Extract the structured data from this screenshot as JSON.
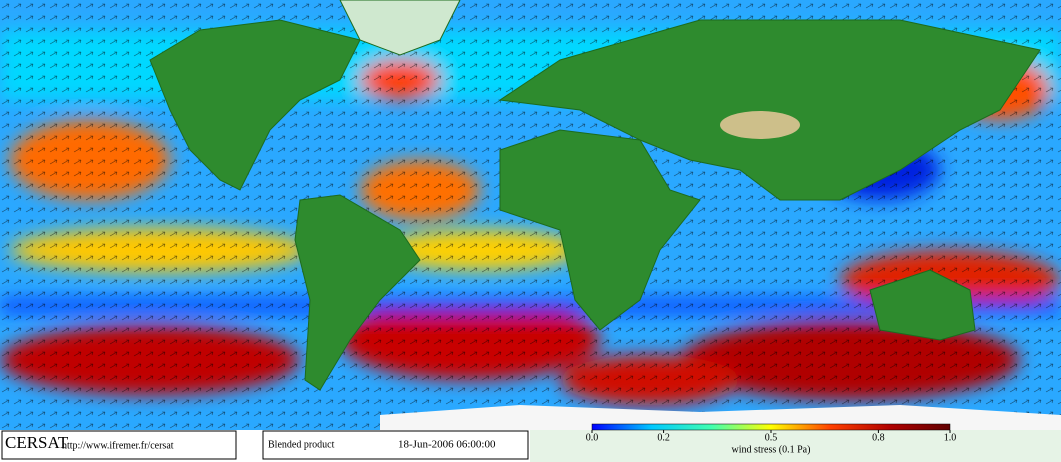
{
  "footer": {
    "logo": "CERSAT",
    "url": "http://www.ifremer.fr/cersat",
    "product": "Blended product",
    "date": "18-Jun-2006 06:00:00"
  },
  "colorbar": {
    "label": "wind stress (0.1 Pa)",
    "lim": [
      0,
      1
    ],
    "ticks": [
      {
        "value": 0,
        "label": "0.0"
      },
      0.2,
      0.5,
      0.8,
      {
        "value": 1,
        "label": "1.0"
      }
    ],
    "colors": [
      "#0000ff",
      "#00c8ff",
      "#40ffb0",
      "#ffff00",
      "#ff4000",
      "#b00000",
      "#600000"
    ]
  }
}
